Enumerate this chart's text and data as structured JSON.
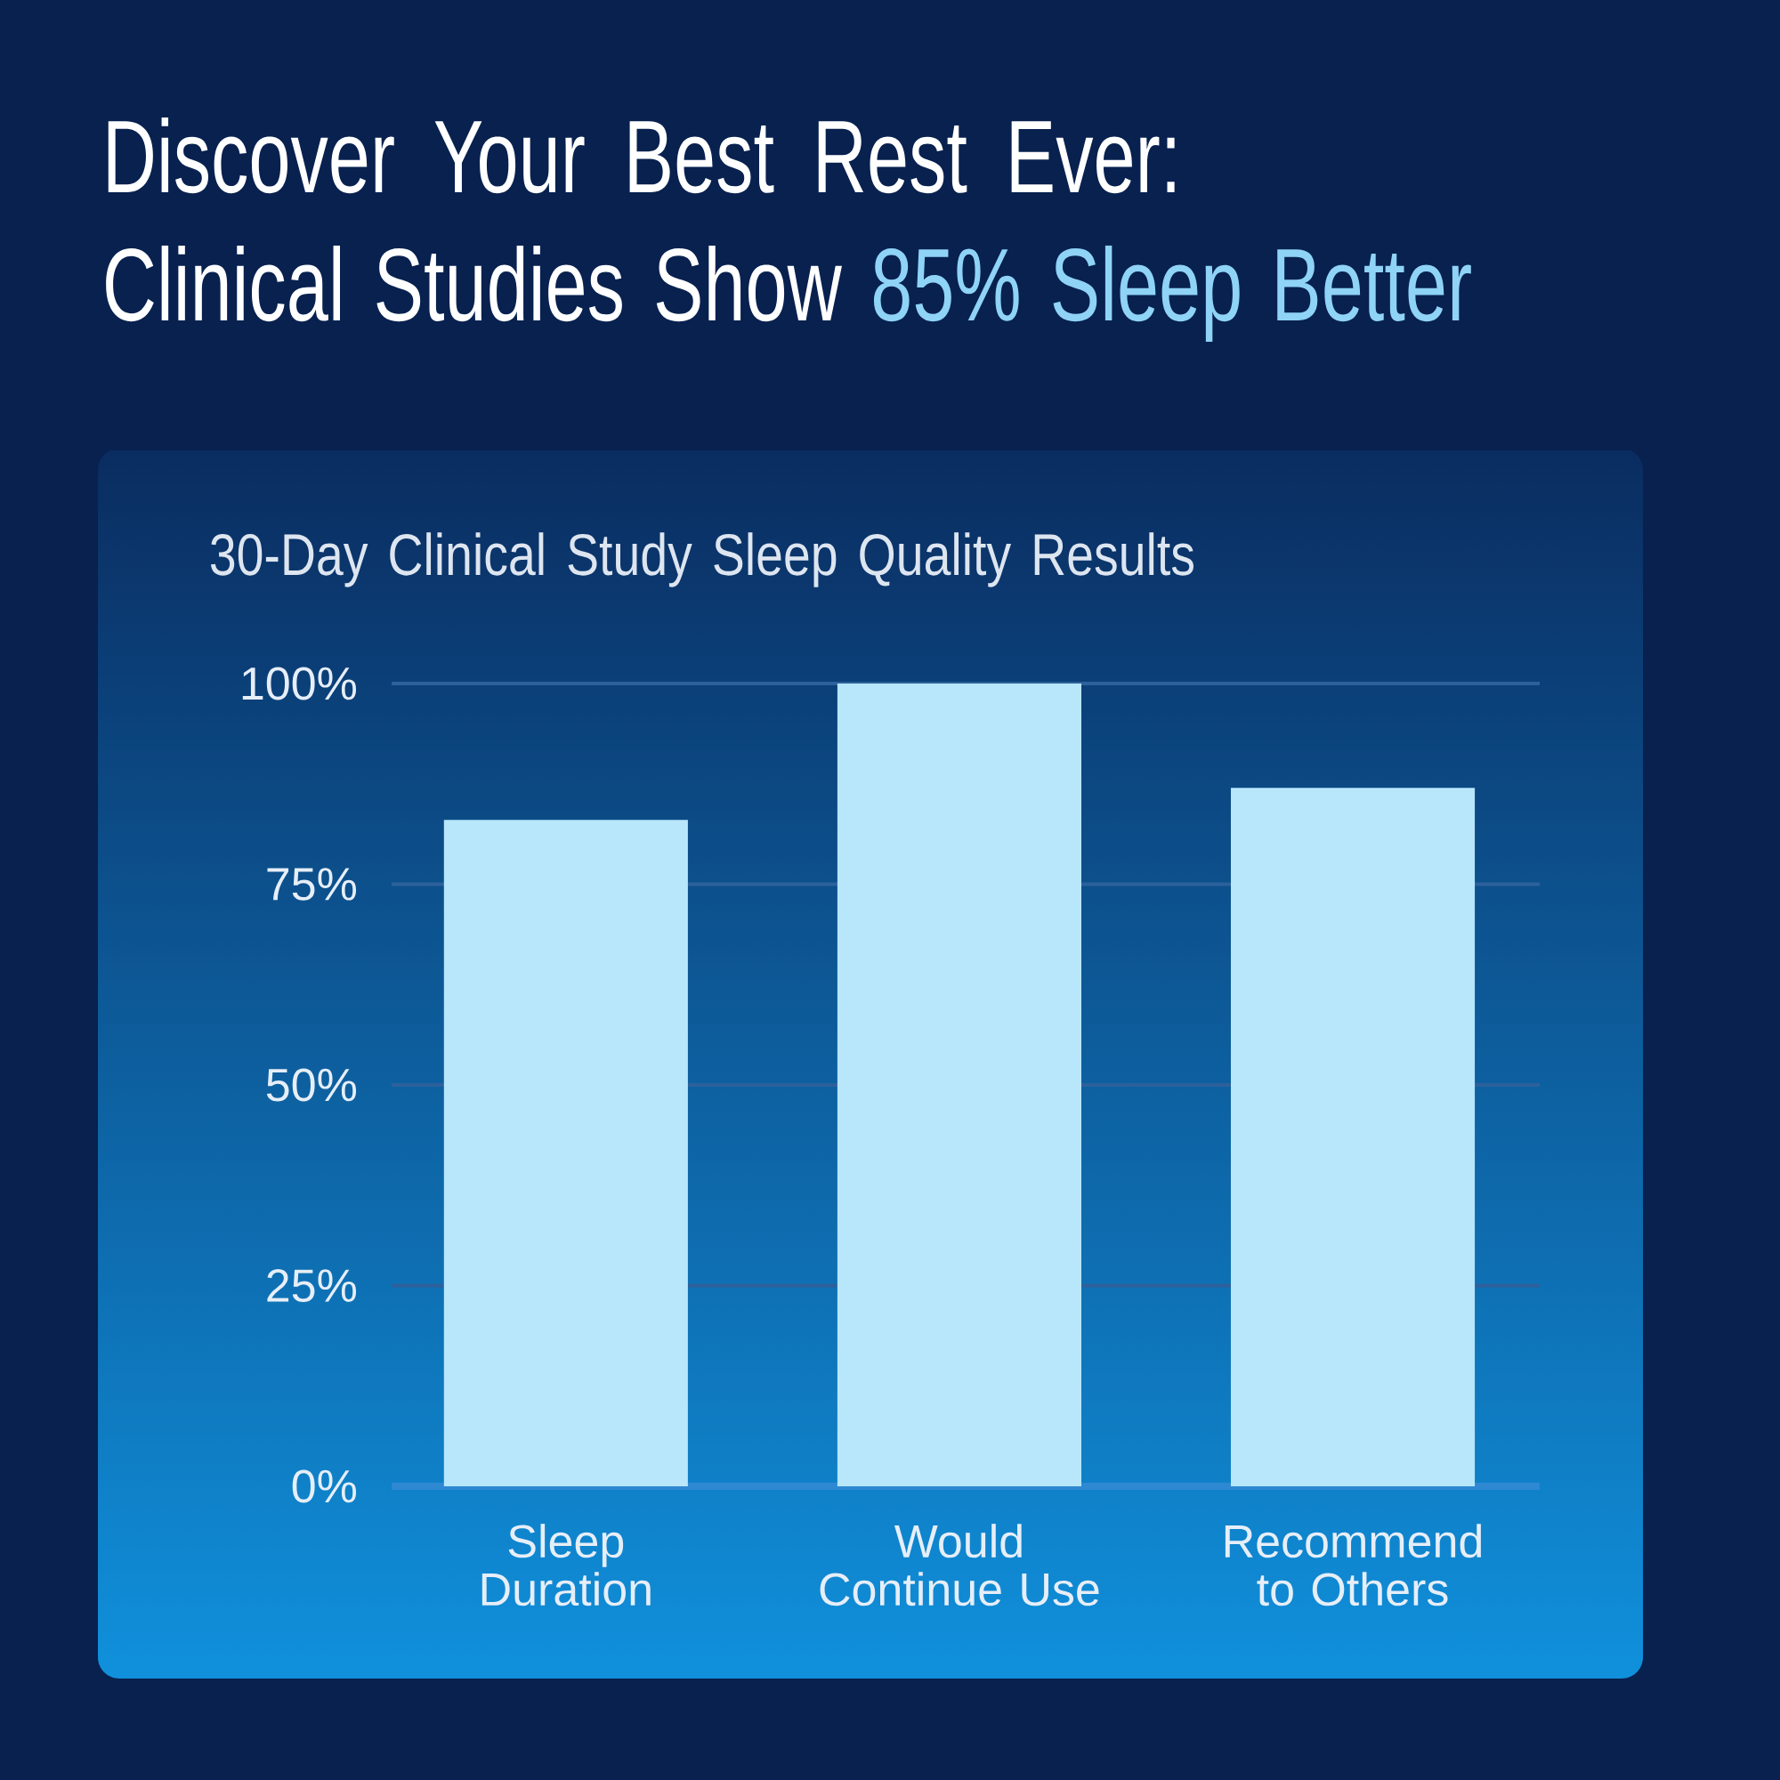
{
  "chart_data": {
    "type": "bar",
    "title": "Discover Your Best Rest Ever: Clinical Studies Show **85% Sleep Better**",
    "subtitle": "30-Day Clinical Study Sleep Quality Results",
    "categories": [
      "Sleep Duration",
      "Would Continue Use",
      "Recommend to Others"
    ],
    "values": [
      83,
      100,
      87
    ],
    "color": "#b8e6fb",
    "ylim": [
      0,
      100
    ],
    "yticks": [
      {
        "value": 0,
        "label": "0%"
      },
      {
        "value": 25,
        "label": "25%"
      },
      {
        "value": 50,
        "label": "50%"
      },
      {
        "value": 75,
        "label": "75%"
      },
      {
        "value": 100,
        "label": "100%"
      }
    ],
    "grid": "y"
  }
}
